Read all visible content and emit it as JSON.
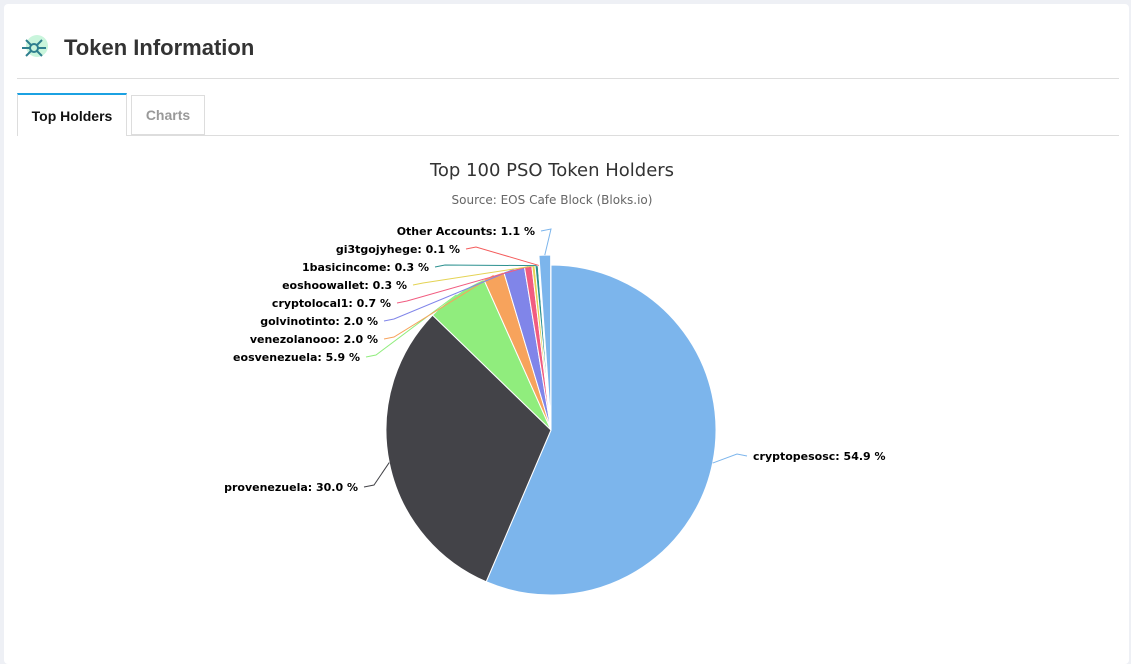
{
  "header": {
    "title": "Token Information",
    "icon": "network-hub-icon"
  },
  "tabs": [
    {
      "label": "Top Holders",
      "active": true
    },
    {
      "label": "Charts",
      "active": false
    }
  ],
  "chart_data": {
    "type": "pie",
    "title": "Top 100 PSO Token Holders",
    "subtitle": "Source: EOS Cafe Block (Bloks.io)",
    "slices": [
      {
        "name": "cryptopesosc",
        "value": 54.9,
        "color": "#7cb5ec",
        "label": "cryptopesosc: 54.9 %"
      },
      {
        "name": "provenezuela",
        "value": 30.0,
        "color": "#434348",
        "label": "provenezuela: 30.0 %"
      },
      {
        "name": "eosvenezuela",
        "value": 5.9,
        "color": "#90ed7d",
        "label": "eosvenezuela: 5.9 %"
      },
      {
        "name": "venezolanooo",
        "value": 2.0,
        "color": "#f7a35c",
        "label": "venezolanooo: 2.0 %"
      },
      {
        "name": "golvinotinto",
        "value": 2.0,
        "color": "#8085e9",
        "label": "golvinotinto: 2.0 %"
      },
      {
        "name": "cryptolocal1",
        "value": 0.7,
        "color": "#f15c80",
        "label": "cryptolocal1: 0.7 %"
      },
      {
        "name": "eoshoowallet",
        "value": 0.3,
        "color": "#e4d354",
        "label": "eoshoowallet: 0.3 %"
      },
      {
        "name": "1basicincome",
        "value": 0.3,
        "color": "#2b908f",
        "label": "1basicincome: 0.3 %"
      },
      {
        "name": "gi3tgojyhege",
        "value": 0.1,
        "color": "#f45b5b",
        "label": "gi3tgojyhege: 0.1 %"
      },
      {
        "name": "Other Accounts",
        "value": 1.1,
        "color": "#7cb5ec",
        "label": "Other Accounts: 1.1 %",
        "sliced": true
      }
    ]
  }
}
